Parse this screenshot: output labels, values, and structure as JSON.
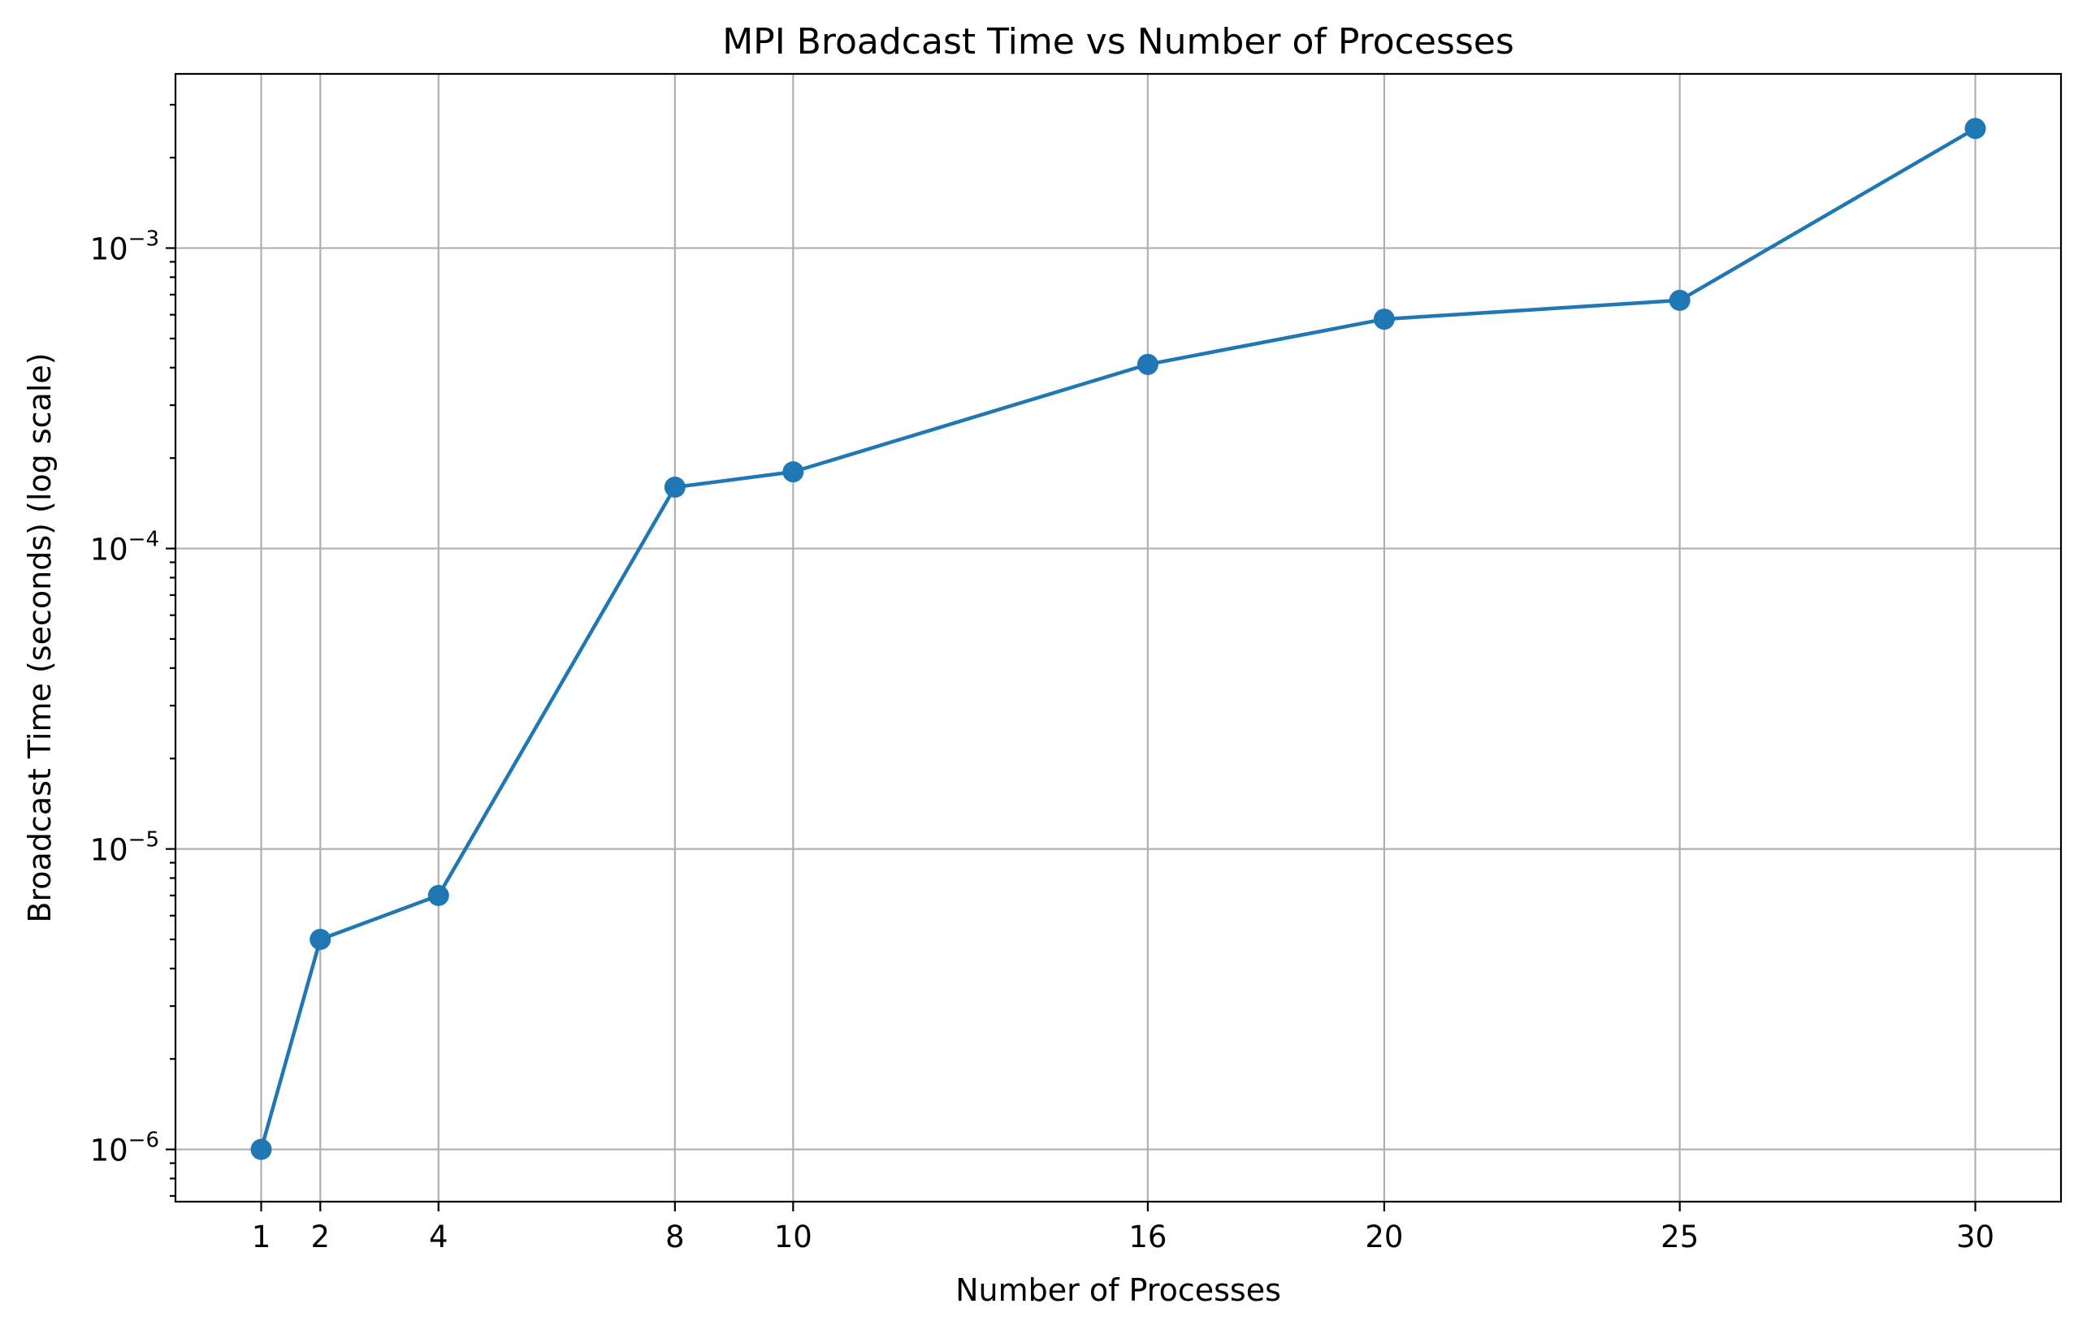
{
  "chart_data": {
    "type": "line",
    "title": "MPI Broadcast Time vs Number of Processes",
    "xlabel": "Number of Processes",
    "ylabel": "Broadcast Time (seconds) (log scale)",
    "yscale": "log",
    "grid": true,
    "x": [
      1,
      2,
      4,
      8,
      10,
      16,
      20,
      25,
      30
    ],
    "x_ticks": [
      1,
      2,
      4,
      8,
      10,
      16,
      20,
      25,
      30
    ],
    "xlim": [
      -0.45,
      31.45
    ],
    "ylim": [
      6.7e-07,
      0.0038
    ],
    "y_ticks": [
      {
        "value": 1e-06,
        "base": "10",
        "exp": "−6"
      },
      {
        "value": 1e-05,
        "base": "10",
        "exp": "−5"
      },
      {
        "value": 0.0001,
        "base": "10",
        "exp": "−4"
      },
      {
        "value": 0.001,
        "base": "10",
        "exp": "−3"
      }
    ],
    "series": [
      {
        "values": [
          1e-06,
          5e-06,
          7e-06,
          0.00016,
          0.00018,
          0.00041,
          0.00058,
          0.00067,
          0.0025
        ],
        "color": "#1f77b4",
        "marker": "circle"
      }
    ]
  }
}
